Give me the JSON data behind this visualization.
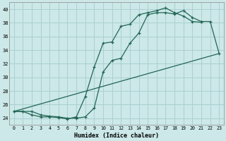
{
  "xlabel": "Humidex (Indice chaleur)",
  "bg_color": "#cce8e8",
  "grid_color": "#aad0d0",
  "line_color": "#226655",
  "xlim": [
    -0.5,
    23.5
  ],
  "ylim": [
    23.0,
    41.0
  ],
  "xticks": [
    0,
    1,
    2,
    3,
    4,
    5,
    6,
    7,
    8,
    9,
    10,
    11,
    12,
    13,
    14,
    15,
    16,
    17,
    18,
    19,
    20,
    21,
    22,
    23
  ],
  "yticks": [
    24,
    26,
    28,
    30,
    32,
    34,
    36,
    38,
    40
  ],
  "line1_x": [
    0,
    1,
    2,
    3,
    4,
    5,
    6,
    7,
    8,
    9,
    10,
    11,
    12,
    13,
    14,
    15,
    16,
    17,
    18,
    19,
    20,
    21
  ],
  "line1_y": [
    25.0,
    25.0,
    24.5,
    24.2,
    24.2,
    24.1,
    23.9,
    24.2,
    27.2,
    31.5,
    35.0,
    35.2,
    37.5,
    37.8,
    39.2,
    39.5,
    39.8,
    40.2,
    39.5,
    39.0,
    38.2,
    38.1
  ],
  "line2_x": [
    0,
    1,
    2,
    3,
    4,
    5,
    6,
    7,
    8,
    9,
    10,
    11,
    12,
    13,
    14,
    15,
    16,
    17,
    18,
    19,
    20,
    21,
    22,
    23
  ],
  "line2_y": [
    25.0,
    25.0,
    25.0,
    24.5,
    24.3,
    24.2,
    24.0,
    24.0,
    24.2,
    25.5,
    30.8,
    32.5,
    32.8,
    35.0,
    36.5,
    39.2,
    39.5,
    39.5,
    39.3,
    39.8,
    38.8,
    38.2,
    38.2,
    33.5
  ],
  "line3_x": [
    0,
    23
  ],
  "line3_y": [
    25.0,
    33.5
  ]
}
